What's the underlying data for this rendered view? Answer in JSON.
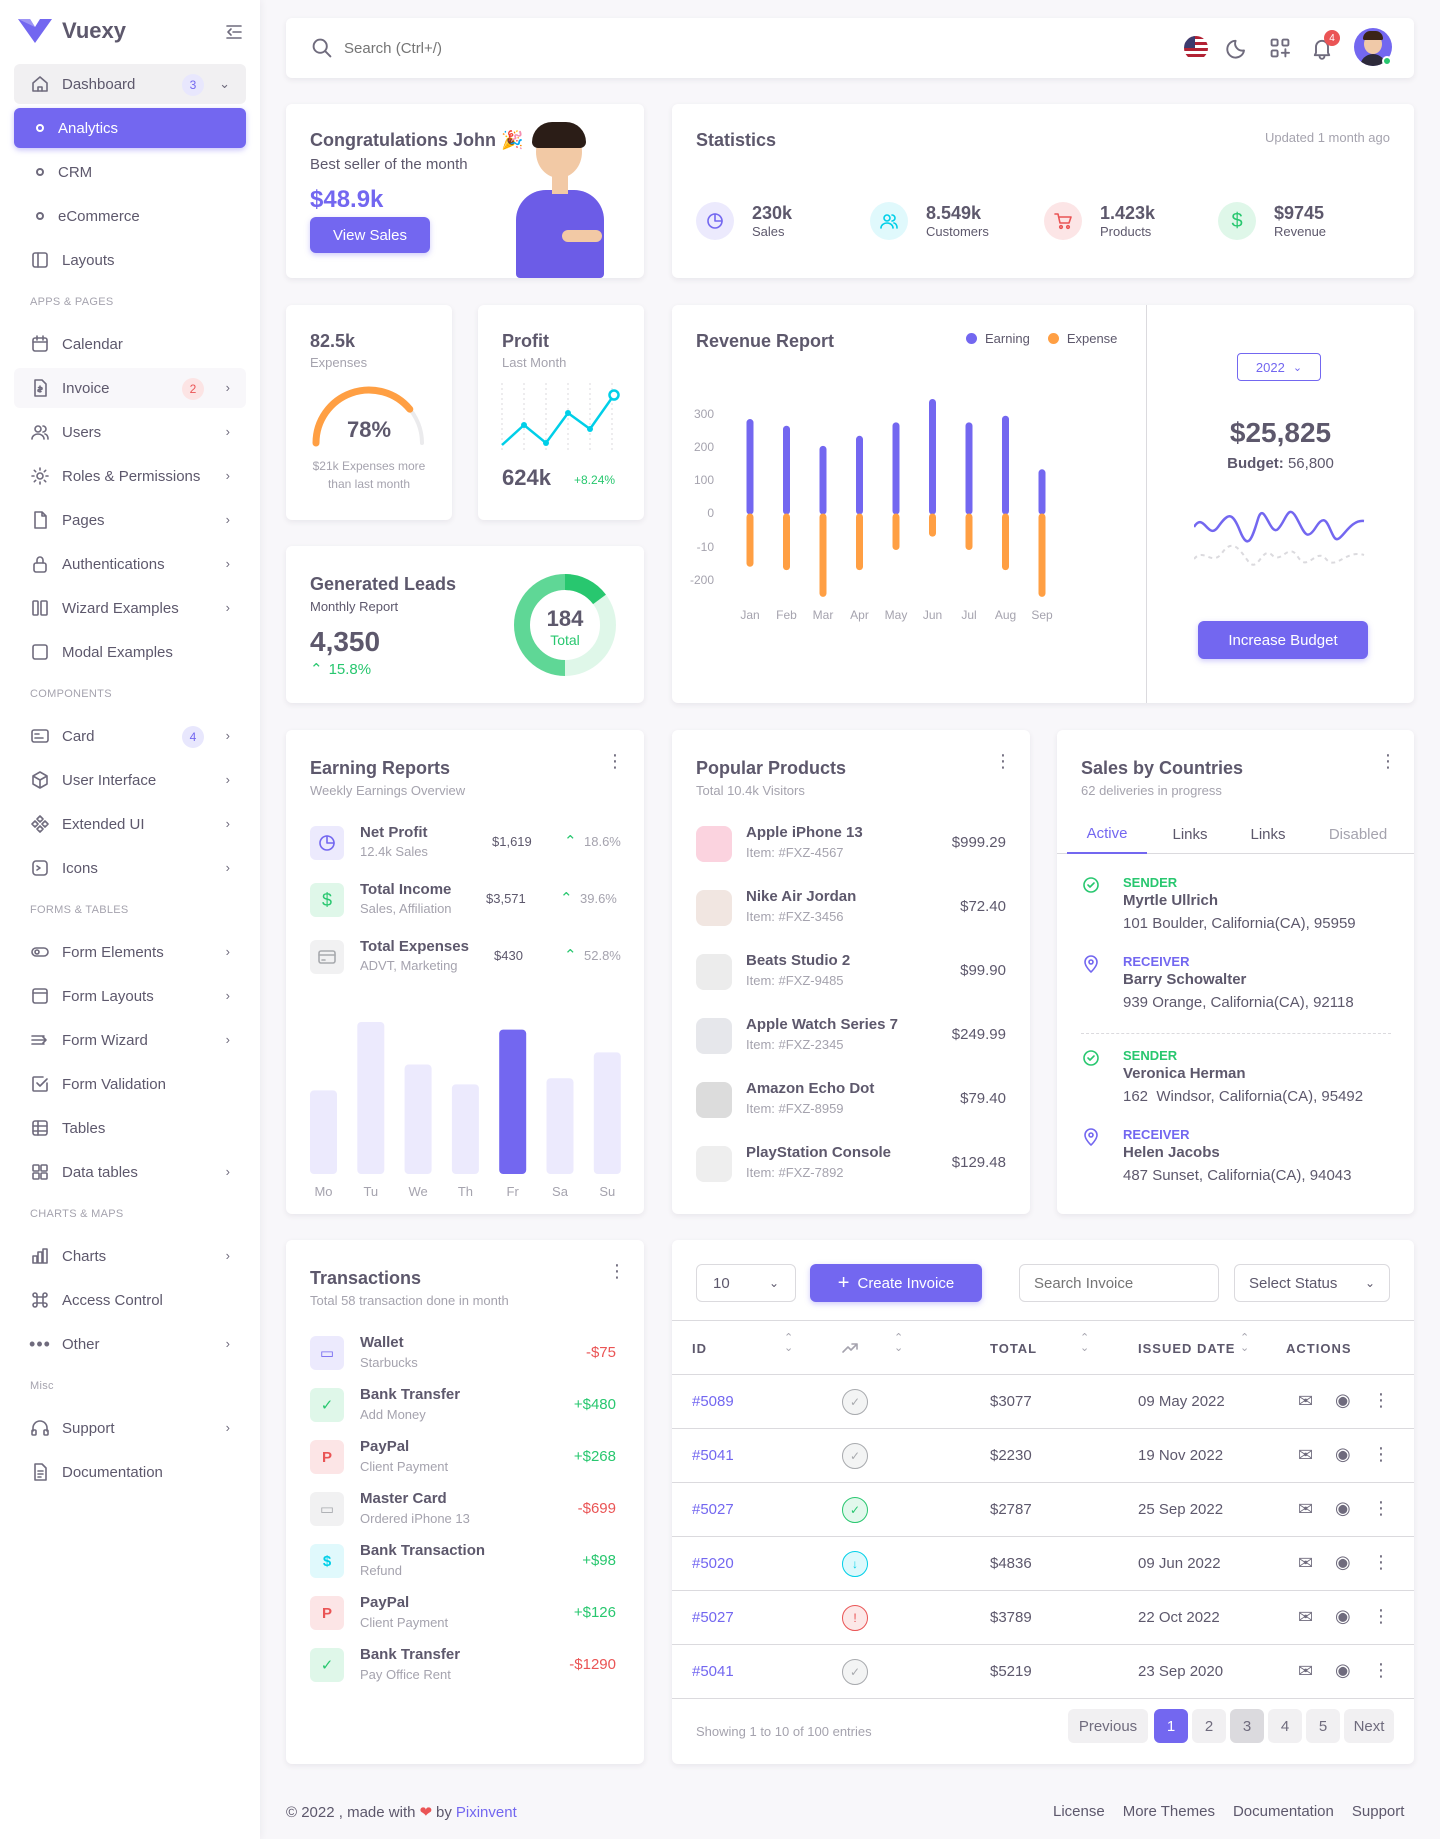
{
  "brand": {
    "name": "Vuexy"
  },
  "sidebar": {
    "dashboard": {
      "label": "Dashboard",
      "badge": "3"
    },
    "sub": [
      "Analytics",
      "CRM",
      "eCommerce"
    ],
    "layouts": "Layouts",
    "section_apps": "APPS & PAGES",
    "apps": [
      {
        "label": "Calendar"
      },
      {
        "label": "Invoice",
        "badge": "2"
      },
      {
        "label": "Users"
      },
      {
        "label": "Roles & Permissions"
      },
      {
        "label": "Pages"
      },
      {
        "label": "Authentications"
      },
      {
        "label": "Wizard Examples"
      },
      {
        "label": "Modal Examples"
      }
    ],
    "section_components": "COMPONENTS",
    "components": [
      {
        "label": "Card",
        "badge": "4"
      },
      {
        "label": "User Interface"
      },
      {
        "label": "Extended UI"
      },
      {
        "label": "Icons"
      }
    ],
    "section_forms": "FORMS & TABLES",
    "forms": [
      {
        "label": "Form Elements"
      },
      {
        "label": "Form Layouts"
      },
      {
        "label": "Form Wizard"
      },
      {
        "label": "Form Validation"
      },
      {
        "label": "Tables"
      },
      {
        "label": "Data tables"
      }
    ],
    "section_charts": "CHARTS & MAPS",
    "charts": [
      {
        "label": "Charts"
      },
      {
        "label": "Access Control"
      },
      {
        "label": "Other"
      }
    ],
    "section_misc": "Misc",
    "misc": [
      {
        "label": "Support"
      },
      {
        "label": "Documentation"
      }
    ]
  },
  "navbar": {
    "search_placeholder": "Search (Ctrl+/)",
    "notif_count": "4"
  },
  "congrats": {
    "title": "Congratulations John 🎉",
    "subtitle": "Best seller of the month",
    "amount": "$48.9k",
    "button": "View Sales"
  },
  "statistics": {
    "title": "Statistics",
    "updated": "Updated 1 month ago",
    "items": [
      {
        "value": "230k",
        "label": "Sales",
        "color": "#7367f0"
      },
      {
        "value": "8.549k",
        "label": "Customers",
        "color": "#00cfe8"
      },
      {
        "value": "1.423k",
        "label": "Products",
        "color": "#ea5455"
      },
      {
        "value": "$9745",
        "label": "Revenue",
        "color": "#28c76f"
      }
    ]
  },
  "expenses": {
    "value": "82.5k",
    "label": "Expenses",
    "percent": 78,
    "percent_label": "78%",
    "note": "$21k Expenses more than last month"
  },
  "profit": {
    "title": "Profit",
    "subtitle": "Last Month",
    "value": "624k",
    "change": "+8.24%"
  },
  "leads": {
    "title": "Generated Leads",
    "subtitle": "Monthly Report",
    "value": "4,350",
    "change": "15.8%",
    "donut_value": "184",
    "donut_label": "Total"
  },
  "revenue": {
    "title": "Revenue Report",
    "legend_earning": "Earning",
    "legend_expense": "Expense",
    "year": "2022",
    "total": "$25,825",
    "budget_label": "Budget:",
    "budget_value": "56,800",
    "button": "Increase Budget"
  },
  "chart_data": {
    "type": "bar",
    "categories": [
      "Jan",
      "Feb",
      "Mar",
      "Apr",
      "May",
      "Jun",
      "Jul",
      "Aug",
      "Sep"
    ],
    "series": [
      {
        "name": "Earning",
        "values": [
          270,
          250,
          190,
          220,
          260,
          330,
          260,
          280,
          120
        ]
      },
      {
        "name": "Expense",
        "values": [
          -150,
          -160,
          -240,
          -160,
          -100,
          -60,
          -100,
          -160,
          -240
        ]
      }
    ],
    "yticks": [
      300,
      200,
      100,
      0,
      -10,
      -200
    ],
    "ylim": [
      -250,
      350
    ],
    "legend": "top-right"
  },
  "earning_reports": {
    "title": "Earning Reports",
    "subtitle": "Weekly Earnings Overview",
    "items": [
      {
        "title": "Net Profit",
        "sub": "12.4k Sales",
        "amount": "$1,619",
        "pct": "18.6%"
      },
      {
        "title": "Total Income",
        "sub": "Sales, Affiliation",
        "amount": "$3,571",
        "pct": "39.6%"
      },
      {
        "title": "Total Expenses",
        "sub": "ADVT, Marketing",
        "amount": "$430",
        "pct": "52.8%"
      }
    ],
    "days": [
      "Mo",
      "Tu",
      "We",
      "Th",
      "Fr",
      "Sa",
      "Su"
    ],
    "bars": [
      0.55,
      1.0,
      0.72,
      0.59,
      0.95,
      0.63,
      0.8
    ]
  },
  "products": {
    "title": "Popular Products",
    "subtitle": "Total 10.4k Visitors",
    "items": [
      {
        "name": "Apple iPhone 13",
        "item": "Item: #FXZ-4567",
        "price": "$999.29"
      },
      {
        "name": "Nike Air Jordan",
        "item": "Item: #FXZ-3456",
        "price": "$72.40"
      },
      {
        "name": "Beats Studio 2",
        "item": "Item: #FXZ-9485",
        "price": "$99.90"
      },
      {
        "name": "Apple Watch Series 7",
        "item": "Item: #FXZ-2345",
        "price": "$249.99"
      },
      {
        "name": "Amazon Echo Dot",
        "item": "Item: #FXZ-8959",
        "price": "$79.40"
      },
      {
        "name": "PlayStation Console",
        "item": "Item: #FXZ-7892",
        "price": "$129.48"
      }
    ]
  },
  "countries": {
    "title": "Sales by Countries",
    "subtitle": "62 deliveries in progress",
    "tabs": [
      "Active",
      "Links",
      "Links",
      "Disabled"
    ],
    "entries": [
      {
        "role": "SENDER",
        "name": "Myrtle Ullrich",
        "addr": "101 Boulder, California(CA), 95959"
      },
      {
        "role": "RECEIVER",
        "name": "Barry Schowalter",
        "addr": "939 Orange, California(CA), 92118"
      },
      {
        "role": "SENDER",
        "name": "Veronica Herman",
        "addr": "162  Windsor, California(CA), 95492"
      },
      {
        "role": "RECEIVER",
        "name": "Helen Jacobs",
        "addr": "487 Sunset, California(CA), 94043"
      }
    ]
  },
  "transactions": {
    "title": "Transactions",
    "subtitle": "Total 58 transaction done in month",
    "items": [
      {
        "title": "Wallet",
        "sub": "Starbucks",
        "amount": "-$75",
        "color": "#7367f0"
      },
      {
        "title": "Bank Transfer",
        "sub": "Add Money",
        "amount": "+$480",
        "color": "#28c76f"
      },
      {
        "title": "PayPal",
        "sub": "Client Payment",
        "amount": "+$268",
        "color": "#ea5455"
      },
      {
        "title": "Master Card",
        "sub": "Ordered iPhone 13",
        "amount": "-$699",
        "color": "#a8aaae"
      },
      {
        "title": "Bank Transaction",
        "sub": "Refund",
        "amount": "+$98",
        "color": "#00cfe8"
      },
      {
        "title": "PayPal",
        "sub": "Client Payment",
        "amount": "+$126",
        "color": "#ea5455"
      },
      {
        "title": "Bank Transfer",
        "sub": "Pay Office Rent",
        "amount": "-$1290",
        "color": "#28c76f"
      }
    ]
  },
  "invoices": {
    "page_size": "10",
    "create_button": "Create Invoice",
    "search_placeholder": "Search Invoice",
    "status_select": "Select Status",
    "headers": {
      "id": "ID",
      "total": "TOTAL",
      "issued": "ISSUED DATE",
      "actions": "ACTIONS"
    },
    "rows": [
      {
        "id": "#5089",
        "total": "$3077",
        "date": "09 May 2022",
        "status_color": "#a8aaae"
      },
      {
        "id": "#5041",
        "total": "$2230",
        "date": "19 Nov 2022",
        "status_color": "#a8aaae"
      },
      {
        "id": "#5027",
        "total": "$2787",
        "date": "25 Sep 2022",
        "status_color": "#28c76f"
      },
      {
        "id": "#5020",
        "total": "$4836",
        "date": "09 Jun 2022",
        "status_color": "#00cfe8"
      },
      {
        "id": "#5027",
        "total": "$3789",
        "date": "22 Oct 2022",
        "status_color": "#ea5455"
      },
      {
        "id": "#5041",
        "total": "$5219",
        "date": "23 Sep 2020",
        "status_color": "#a8aaae"
      }
    ],
    "showing": "Showing 1 to 10 of 100 entries",
    "pagination": [
      "Previous",
      "1",
      "2",
      "3",
      "4",
      "5",
      "Next"
    ]
  },
  "footer": {
    "copyright": "© 2022 , made with",
    "by": "by",
    "company": "Pixinvent",
    "links": [
      "License",
      "More Themes",
      "Documentation",
      "Support"
    ]
  }
}
